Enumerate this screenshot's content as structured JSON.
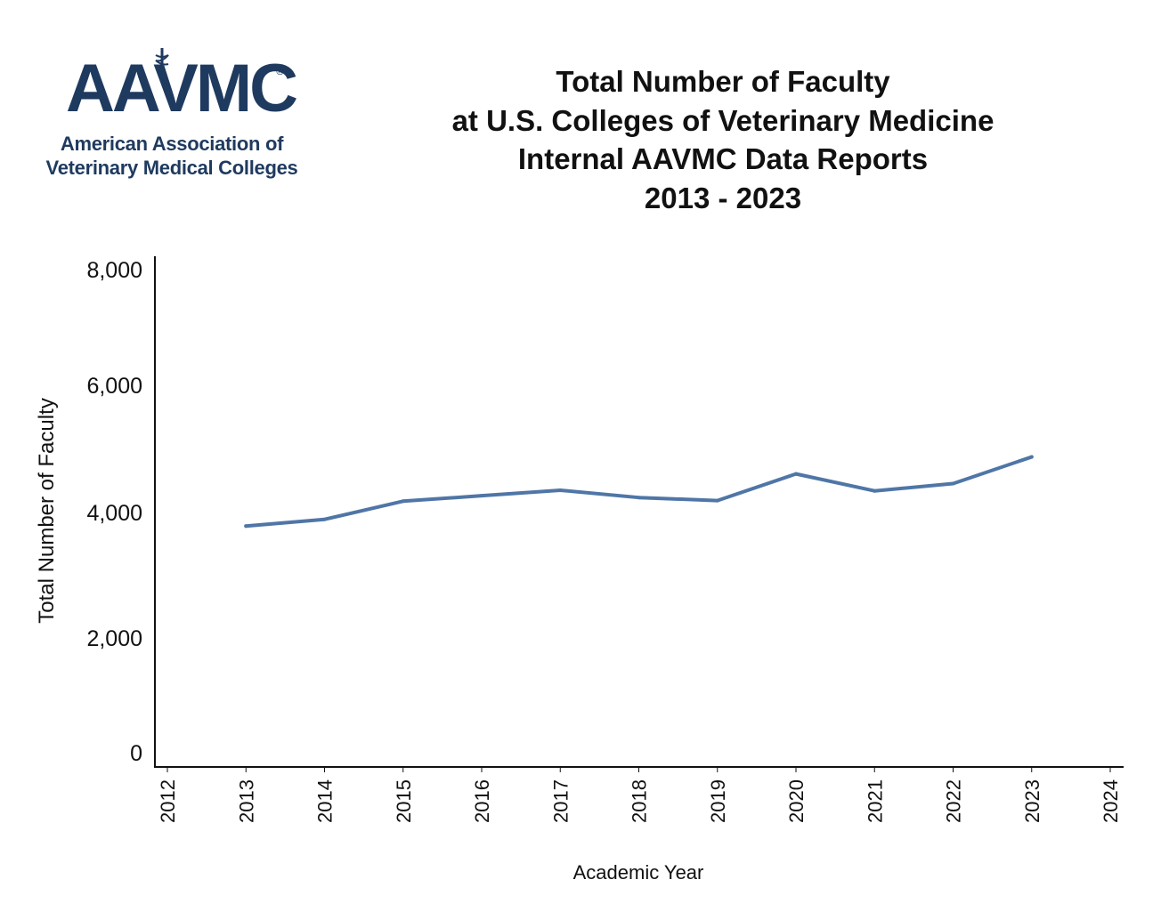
{
  "logo": {
    "mark": "AAVMC",
    "registered": "®",
    "subtitle_line1": "American Association of",
    "subtitle_line2": "Veterinary Medical Colleges"
  },
  "title_lines": [
    "Total Number of Faculty",
    "at U.S. Colleges of Veterinary Medicine",
    "Internal AAVMC Data Reports",
    "2013 - 2023"
  ],
  "colors": {
    "line": "#4f76a6",
    "axis": "#111111",
    "logo": "#1f3a5f"
  },
  "chart_data": {
    "type": "line",
    "title": "Total Number of Faculty at U.S. Colleges of Veterinary Medicine Internal AAVMC Data Reports 2013 - 2023",
    "xlabel": "Academic Year",
    "ylabel": "Total Number of Faculty",
    "x_ticks": [
      "2012",
      "2013",
      "2014",
      "2015",
      "2016",
      "2017",
      "2018",
      "2019",
      "2020",
      "2021",
      "2022",
      "2023",
      "2024"
    ],
    "y_ticks": [
      "0",
      "2,000",
      "4,000",
      "6,000",
      "8,000"
    ],
    "xlim": [
      2012,
      2024
    ],
    "ylim": [
      0,
      8000
    ],
    "grid": false,
    "series": [
      {
        "x": [
          2013,
          2014,
          2015,
          2016,
          2017,
          2018,
          2019,
          2020,
          2021,
          2022,
          2023
        ],
        "values": [
          3740,
          3850,
          4150,
          4240,
          4330,
          4210,
          4160,
          4600,
          4320,
          4440,
          4880
        ]
      }
    ]
  }
}
